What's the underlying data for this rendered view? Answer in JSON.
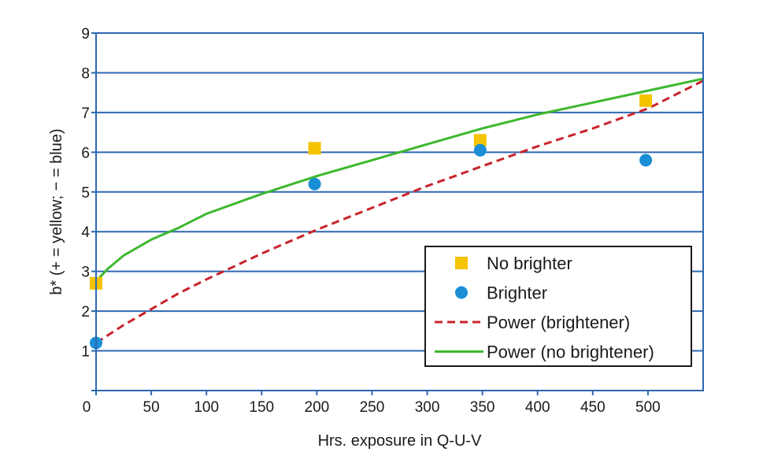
{
  "chart_data": {
    "type": "scatter",
    "title": "",
    "xlabel": "Hrs. exposure in Q-U-V",
    "ylabel": "b* (+ = yellow; − = blue)",
    "xlim": [
      0,
      550
    ],
    "ylim": [
      0,
      9
    ],
    "x_ticks": [
      {
        "value": 0,
        "label": "0"
      },
      {
        "value": 50,
        "label": "50"
      },
      {
        "value": 100,
        "label": "100"
      },
      {
        "value": 150,
        "label": "150"
      },
      {
        "value": 200,
        "label": "200"
      },
      {
        "value": 250,
        "label": "250"
      },
      {
        "value": 300,
        "label": "300"
      },
      {
        "value": 350,
        "label": "350"
      },
      {
        "value": 400,
        "label": "400"
      },
      {
        "value": 450,
        "label": "450"
      },
      {
        "value": 500,
        "label": "500"
      }
    ],
    "y_ticks": [
      {
        "value": 0,
        "label": ""
      },
      {
        "value": 1,
        "label": "1"
      },
      {
        "value": 2,
        "label": "2"
      },
      {
        "value": 3,
        "label": "3"
      },
      {
        "value": 4,
        "label": "4"
      },
      {
        "value": 5,
        "label": "5"
      },
      {
        "value": 6,
        "label": "6"
      },
      {
        "value": 7,
        "label": "7"
      },
      {
        "value": 8,
        "label": "8"
      },
      {
        "value": 9,
        "label": "9"
      }
    ],
    "x_origin_label": "0",
    "grid": "horizontal",
    "legend_position": "bottom-right",
    "series": [
      {
        "name": "No brighter",
        "kind": "points",
        "marker": "square",
        "color": "#F5C400",
        "points": [
          [
            0,
            2.7
          ],
          [
            198,
            6.1
          ],
          [
            348,
            6.3
          ],
          [
            498,
            7.3
          ]
        ]
      },
      {
        "name": "Brighter",
        "kind": "points",
        "marker": "circle",
        "color": "#1B8FD6",
        "points": [
          [
            0,
            1.2
          ],
          [
            198,
            5.2
          ],
          [
            348,
            6.05
          ],
          [
            498,
            5.8
          ]
        ]
      },
      {
        "name": "Power (brightener)",
        "kind": "line",
        "style": "dashed",
        "color": "#C8242B",
        "points": [
          [
            0,
            1.2
          ],
          [
            25,
            1.65
          ],
          [
            50,
            2.05
          ],
          [
            75,
            2.45
          ],
          [
            100,
            2.8
          ],
          [
            150,
            3.45
          ],
          [
            200,
            4.05
          ],
          [
            250,
            4.6
          ],
          [
            300,
            5.15
          ],
          [
            350,
            5.65
          ],
          [
            400,
            6.15
          ],
          [
            450,
            6.6
          ],
          [
            500,
            7.1
          ],
          [
            550,
            7.8
          ]
        ]
      },
      {
        "name": "Power (no brightener)",
        "kind": "line",
        "style": "solid",
        "color": "#3DB82E",
        "points": [
          [
            0,
            2.75
          ],
          [
            10,
            3.05
          ],
          [
            25,
            3.4
          ],
          [
            50,
            3.8
          ],
          [
            75,
            4.1
          ],
          [
            100,
            4.45
          ],
          [
            150,
            4.95
          ],
          [
            200,
            5.4
          ],
          [
            250,
            5.8
          ],
          [
            300,
            6.2
          ],
          [
            350,
            6.6
          ],
          [
            400,
            6.95
          ],
          [
            450,
            7.25
          ],
          [
            500,
            7.55
          ],
          [
            550,
            7.85
          ]
        ]
      }
    ],
    "colors": {
      "axis": "#2E67B0",
      "grid": "#2E67B0",
      "legend_border": "#1a1a1a"
    }
  }
}
